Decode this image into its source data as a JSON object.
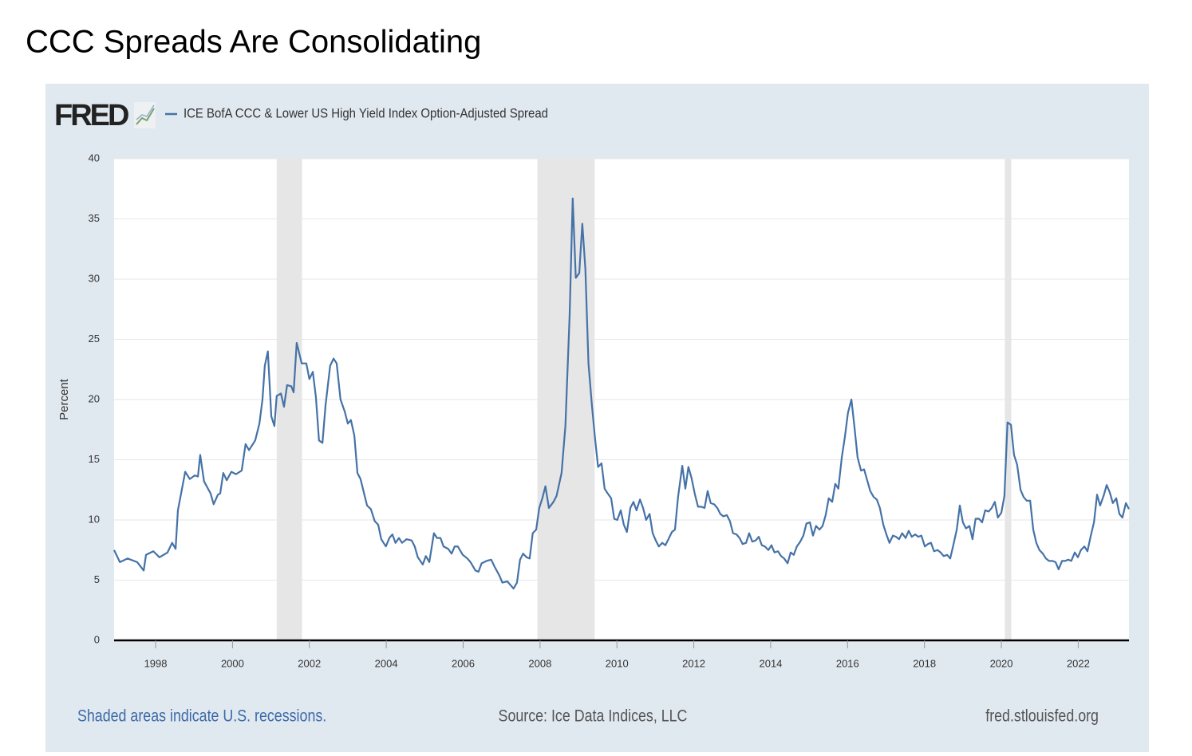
{
  "chart_data": {
    "type": "line",
    "title": "CCC Spreads Are Consolidating",
    "logo": "FRED",
    "ylabel": "Percent",
    "note": "Shaded areas indicate U.S. recessions.",
    "source": "Source: Ice Data Indices, LLC",
    "url": "fred.stlouisfed.org",
    "xlim": [
      1996.92,
      2023.32
    ],
    "ylim": [
      0,
      40
    ],
    "xticks": [
      1998,
      2000,
      2002,
      2004,
      2006,
      2008,
      2010,
      2012,
      2014,
      2016,
      2018,
      2020,
      2022
    ],
    "yticks": [
      0,
      5,
      10,
      15,
      20,
      25,
      30,
      35,
      40
    ],
    "grid": true,
    "recession_color": "#e6e6e6",
    "recessions": [
      [
        2001.15,
        2001.81
      ],
      [
        2007.93,
        2009.42
      ],
      [
        2020.09,
        2020.26
      ]
    ],
    "x": [
      1996.92,
      1997.07,
      1997.27,
      1997.52,
      1997.69,
      1997.75,
      1997.94,
      1998.1,
      1998.31,
      1998.43,
      1998.52,
      1998.58,
      1998.77,
      1998.89,
      1999.02,
      1999.1,
      1999.16,
      1999.26,
      1999.43,
      1999.51,
      1999.62,
      1999.68,
      1999.76,
      1999.85,
      1999.97,
      2000.09,
      2000.24,
      2000.34,
      2000.43,
      2000.59,
      2000.7,
      2000.78,
      2000.84,
      2000.92,
      2001.01,
      2001.09,
      2001.15,
      2001.26,
      2001.34,
      2001.42,
      2001.53,
      2001.59,
      2001.67,
      2001.8,
      2001.92,
      2002.0,
      2002.09,
      2002.17,
      2002.25,
      2002.34,
      2002.42,
      2002.54,
      2002.63,
      2002.71,
      2002.81,
      2002.92,
      2003.0,
      2003.08,
      2003.17,
      2003.25,
      2003.33,
      2003.5,
      2003.6,
      2003.7,
      2003.79,
      2003.87,
      2003.99,
      2004.08,
      2004.16,
      2004.24,
      2004.33,
      2004.41,
      2004.53,
      2004.66,
      2004.74,
      2004.82,
      2004.95,
      2005.03,
      2005.12,
      2005.24,
      2005.32,
      2005.41,
      2005.49,
      2005.61,
      2005.7,
      2005.78,
      2005.86,
      2005.99,
      2006.11,
      2006.19,
      2006.32,
      2006.4,
      2006.48,
      2006.61,
      2006.73,
      2006.82,
      2006.94,
      2007.02,
      2007.15,
      2007.23,
      2007.31,
      2007.4,
      2007.48,
      2007.56,
      2007.65,
      2007.73,
      2007.81,
      2007.9,
      2007.98,
      2008.06,
      2008.14,
      2008.23,
      2008.35,
      2008.43,
      2008.56,
      2008.66,
      2008.77,
      2008.85,
      2008.93,
      2009.02,
      2009.1,
      2009.18,
      2009.26,
      2009.35,
      2009.43,
      2009.51,
      2009.6,
      2009.68,
      2009.76,
      2009.85,
      2009.93,
      2010.01,
      2010.1,
      2010.18,
      2010.26,
      2010.35,
      2010.43,
      2010.51,
      2010.6,
      2010.68,
      2010.76,
      2010.85,
      2010.93,
      2011.01,
      2011.09,
      2011.18,
      2011.26,
      2011.34,
      2011.43,
      2011.51,
      2011.59,
      2011.7,
      2011.78,
      2011.86,
      2011.94,
      2012.03,
      2012.11,
      2012.19,
      2012.28,
      2012.36,
      2012.44,
      2012.53,
      2012.61,
      2012.69,
      2012.77,
      2012.86,
      2012.94,
      2013.02,
      2013.11,
      2013.19,
      2013.27,
      2013.36,
      2013.44,
      2013.52,
      2013.61,
      2013.69,
      2013.77,
      2013.85,
      2013.94,
      2014.02,
      2014.1,
      2014.19,
      2014.27,
      2014.35,
      2014.44,
      2014.52,
      2014.6,
      2014.68,
      2014.77,
      2014.85,
      2014.93,
      2015.02,
      2015.1,
      2015.18,
      2015.27,
      2015.35,
      2015.43,
      2015.51,
      2015.6,
      2015.68,
      2015.76,
      2015.85,
      2015.93,
      2016.01,
      2016.1,
      2016.18,
      2016.26,
      2016.35,
      2016.43,
      2016.51,
      2016.59,
      2016.68,
      2016.76,
      2016.84,
      2016.93,
      2017.01,
      2017.09,
      2017.18,
      2017.26,
      2017.34,
      2017.42,
      2017.51,
      2017.59,
      2017.67,
      2017.76,
      2017.84,
      2017.92,
      2018.01,
      2018.09,
      2018.17,
      2018.25,
      2018.34,
      2018.42,
      2018.5,
      2018.59,
      2018.67,
      2018.75,
      2018.84,
      2018.92,
      2019.0,
      2019.08,
      2019.17,
      2019.25,
      2019.33,
      2019.42,
      2019.5,
      2019.58,
      2019.67,
      2019.75,
      2019.83,
      2019.91,
      2020.0,
      2020.08,
      2020.16,
      2020.25,
      2020.33,
      2020.41,
      2020.5,
      2020.58,
      2020.66,
      2020.75,
      2020.83,
      2020.91,
      2020.99,
      2021.08,
      2021.16,
      2021.24,
      2021.33,
      2021.41,
      2021.49,
      2021.58,
      2021.66,
      2021.74,
      2021.82,
      2021.91,
      2021.99,
      2022.07,
      2022.16,
      2022.24,
      2022.32,
      2022.41,
      2022.49,
      2022.57,
      2022.66,
      2022.74,
      2022.82,
      2022.9,
      2022.99,
      2023.07,
      2023.15,
      2023.24,
      2023.32
    ],
    "series": [
      {
        "name": "ICE BofA CCC & Lower US High Yield Index Option-Adjusted Spread",
        "color": "#4572a7",
        "values": [
          7.5,
          6.5,
          6.8,
          6.5,
          5.8,
          7.1,
          7.4,
          6.9,
          7.3,
          8.1,
          7.6,
          10.8,
          14.0,
          13.4,
          13.7,
          13.6,
          15.4,
          13.2,
          12.2,
          11.3,
          12.1,
          12.2,
          13.9,
          13.3,
          14.0,
          13.8,
          14.1,
          16.3,
          15.8,
          16.6,
          18.0,
          20.0,
          22.8,
          24.0,
          18.6,
          17.8,
          20.3,
          20.5,
          19.4,
          21.2,
          21.1,
          20.6,
          24.7,
          23.0,
          23.0,
          21.7,
          22.3,
          20.2,
          16.6,
          16.4,
          19.5,
          22.8,
          23.4,
          23.0,
          20.0,
          19.0,
          18.0,
          18.3,
          17.0,
          13.9,
          13.4,
          11.2,
          10.9,
          9.9,
          9.6,
          8.4,
          7.8,
          8.5,
          8.8,
          8.1,
          8.5,
          8.1,
          8.4,
          8.3,
          7.8,
          6.9,
          6.3,
          7.0,
          6.5,
          8.9,
          8.5,
          8.5,
          7.8,
          7.6,
          7.2,
          7.8,
          7.8,
          7.1,
          6.8,
          6.5,
          5.8,
          5.7,
          6.4,
          6.6,
          6.7,
          6.1,
          5.4,
          4.8,
          4.9,
          4.6,
          4.3,
          4.8,
          6.7,
          7.2,
          6.9,
          6.8,
          8.9,
          9.2,
          11.0,
          11.8,
          12.8,
          11.0,
          11.5,
          12.0,
          13.9,
          17.8,
          27.0,
          36.7,
          30.1,
          30.5,
          34.6,
          30.8,
          23.0,
          19.5,
          16.8,
          14.4,
          14.7,
          12.6,
          12.2,
          11.8,
          10.1,
          10.0,
          10.8,
          9.6,
          9.0,
          11.0,
          11.5,
          10.8,
          11.7,
          11.0,
          10.0,
          10.5,
          8.9,
          8.3,
          7.8,
          8.1,
          7.9,
          8.4,
          9.0,
          9.2,
          11.9,
          14.5,
          12.6,
          14.4,
          13.5,
          12.1,
          11.1,
          11.1,
          11.0,
          12.4,
          11.4,
          11.3,
          11.0,
          10.5,
          10.3,
          10.4,
          9.9,
          8.9,
          8.8,
          8.5,
          8.0,
          8.1,
          8.9,
          8.2,
          8.3,
          8.6,
          7.9,
          7.8,
          7.5,
          7.9,
          7.3,
          7.4,
          7.0,
          6.8,
          6.4,
          7.3,
          7.1,
          7.8,
          8.2,
          8.7,
          9.7,
          9.8,
          8.7,
          9.5,
          9.2,
          9.5,
          10.4,
          11.8,
          11.5,
          13.0,
          12.6,
          15.2,
          16.9,
          18.9,
          20.0,
          17.7,
          15.2,
          14.1,
          14.2,
          13.3,
          12.4,
          11.9,
          11.7,
          11.0,
          9.6,
          8.8,
          8.1,
          8.7,
          8.6,
          8.4,
          8.9,
          8.5,
          9.1,
          8.6,
          8.8,
          8.6,
          8.7,
          7.8,
          8.0,
          8.1,
          7.4,
          7.5,
          7.3,
          7.0,
          7.1,
          6.8,
          7.9,
          9.2,
          11.2,
          9.8,
          9.3,
          9.5,
          8.4,
          10.1,
          10.1,
          9.8,
          10.8,
          10.7,
          11.0,
          11.5,
          10.2,
          10.6,
          12.0,
          18.1,
          17.9,
          15.4,
          14.6,
          12.5,
          11.9,
          11.6,
          11.6,
          9.2,
          8.1,
          7.5,
          7.2,
          6.8,
          6.6,
          6.6,
          6.5,
          5.9,
          6.6,
          6.6,
          6.7,
          6.6,
          7.3,
          6.9,
          7.5,
          7.8,
          7.4,
          8.6,
          9.8,
          12.1,
          11.2,
          12.0,
          12.9,
          12.3,
          11.4,
          11.8,
          10.5,
          10.2,
          11.4,
          10.9
        ]
      }
    ]
  }
}
